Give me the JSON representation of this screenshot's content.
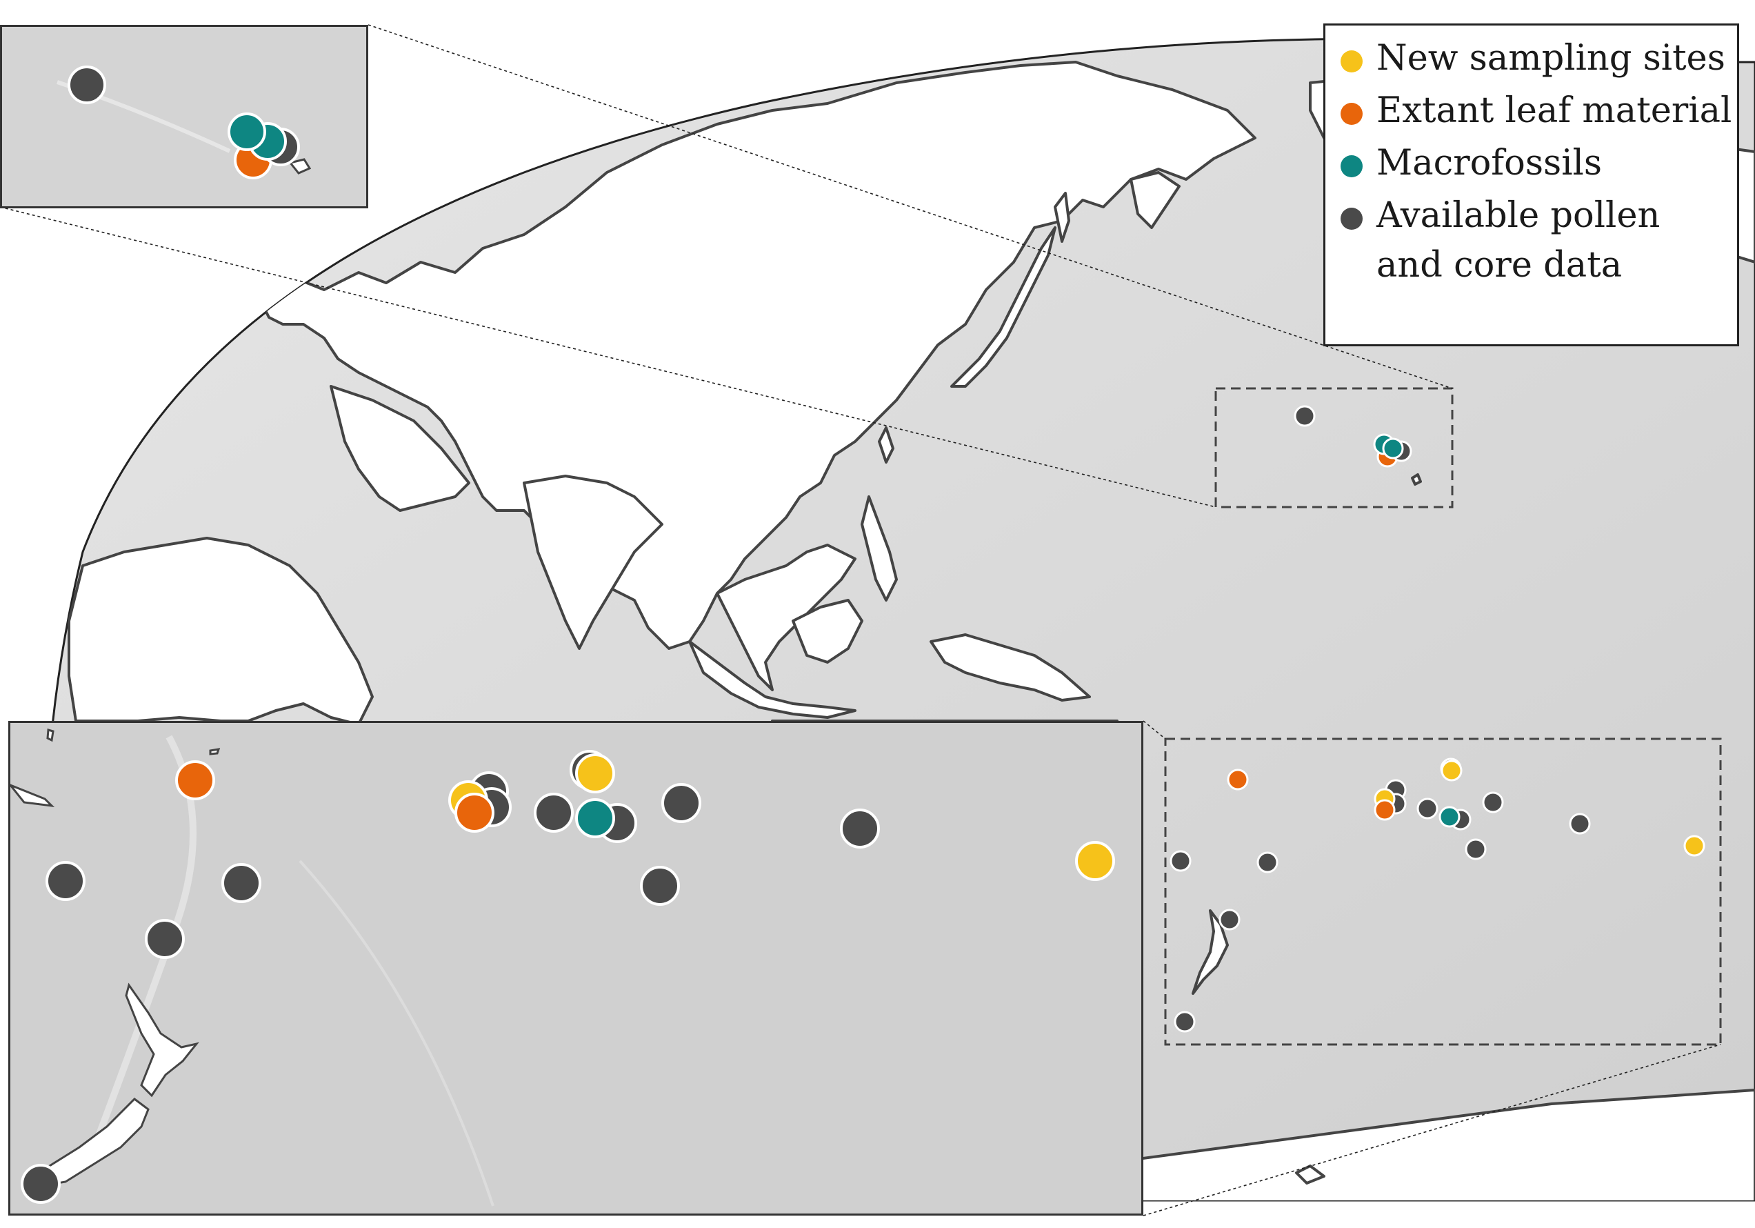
{
  "legend": {
    "items": [
      {
        "label": "New sampling sites",
        "color": "#f6c21a"
      },
      {
        "label": "Extant leaf material",
        "color": "#e8650b"
      },
      {
        "label": "Macrofossils",
        "color": "#0e8682"
      },
      {
        "label": "Available pollen\nand core data",
        "color": "#4a4a4a"
      }
    ]
  },
  "colors": {
    "ocean": "#d3d3d3",
    "land": "#ffffff",
    "coastline": "#444444",
    "new_sampling": "#f6c21a",
    "extant_leaf": "#e8650b",
    "macrofossils": "#0e8682",
    "pollen_core": "#4a4a4a"
  },
  "map": {
    "projection": "Winkel-style world map centred on the Pacific",
    "region_boxes": [
      "Hawaiian Islands",
      "Southwest Pacific"
    ]
  }
}
